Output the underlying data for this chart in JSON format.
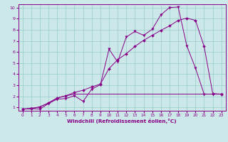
{
  "xlabel": "Windchill (Refroidissement éolien,°C)",
  "xlim": [
    -0.5,
    23.5
  ],
  "ylim": [
    0.7,
    10.3
  ],
  "xticks": [
    0,
    1,
    2,
    3,
    4,
    5,
    6,
    7,
    8,
    9,
    10,
    11,
    12,
    13,
    14,
    15,
    16,
    17,
    18,
    19,
    20,
    21,
    22,
    23
  ],
  "yticks": [
    1,
    2,
    3,
    4,
    5,
    6,
    7,
    8,
    9,
    10
  ],
  "bg_color": "#cce8e8",
  "line_color": "#880088",
  "grid_color": "#99cccc",
  "line1_x": [
    0,
    1,
    2,
    3,
    4,
    5,
    6,
    7,
    8,
    9,
    10,
    11,
    12,
    13,
    14,
    15,
    16,
    17,
    18,
    19,
    20,
    21,
    22,
    23
  ],
  "line1_y": [
    0.85,
    0.9,
    0.85,
    1.35,
    1.75,
    1.8,
    2.05,
    1.55,
    2.65,
    3.05,
    6.25,
    5.1,
    7.35,
    7.85,
    7.5,
    8.05,
    9.35,
    10.0,
    10.05,
    6.55,
    4.55,
    2.2,
    2.2,
    2.2
  ],
  "line2_x": [
    0,
    1,
    2,
    3,
    4,
    5,
    6,
    7,
    8,
    9,
    10,
    11,
    12,
    13,
    14,
    15,
    16,
    17,
    18,
    19,
    20,
    21,
    22,
    23
  ],
  "line2_y": [
    0.85,
    0.9,
    1.05,
    1.4,
    1.85,
    2.05,
    2.35,
    2.55,
    2.85,
    3.1,
    4.5,
    5.3,
    5.85,
    6.5,
    7.05,
    7.5,
    7.95,
    8.35,
    8.85,
    9.05,
    8.85,
    6.5,
    2.25,
    2.2
  ],
  "line3_x": [
    0,
    1,
    2,
    3,
    4,
    5,
    6,
    7,
    8,
    9,
    10,
    11,
    12,
    13,
    14,
    15,
    16,
    17,
    18,
    19,
    20,
    21,
    22,
    23
  ],
  "line3_y": [
    0.85,
    0.9,
    1.05,
    1.4,
    1.85,
    2.05,
    2.2,
    2.2,
    2.2,
    2.2,
    2.2,
    2.2,
    2.2,
    2.2,
    2.2,
    2.2,
    2.2,
    2.2,
    2.2,
    2.2,
    2.2,
    2.2,
    2.2,
    2.2
  ]
}
